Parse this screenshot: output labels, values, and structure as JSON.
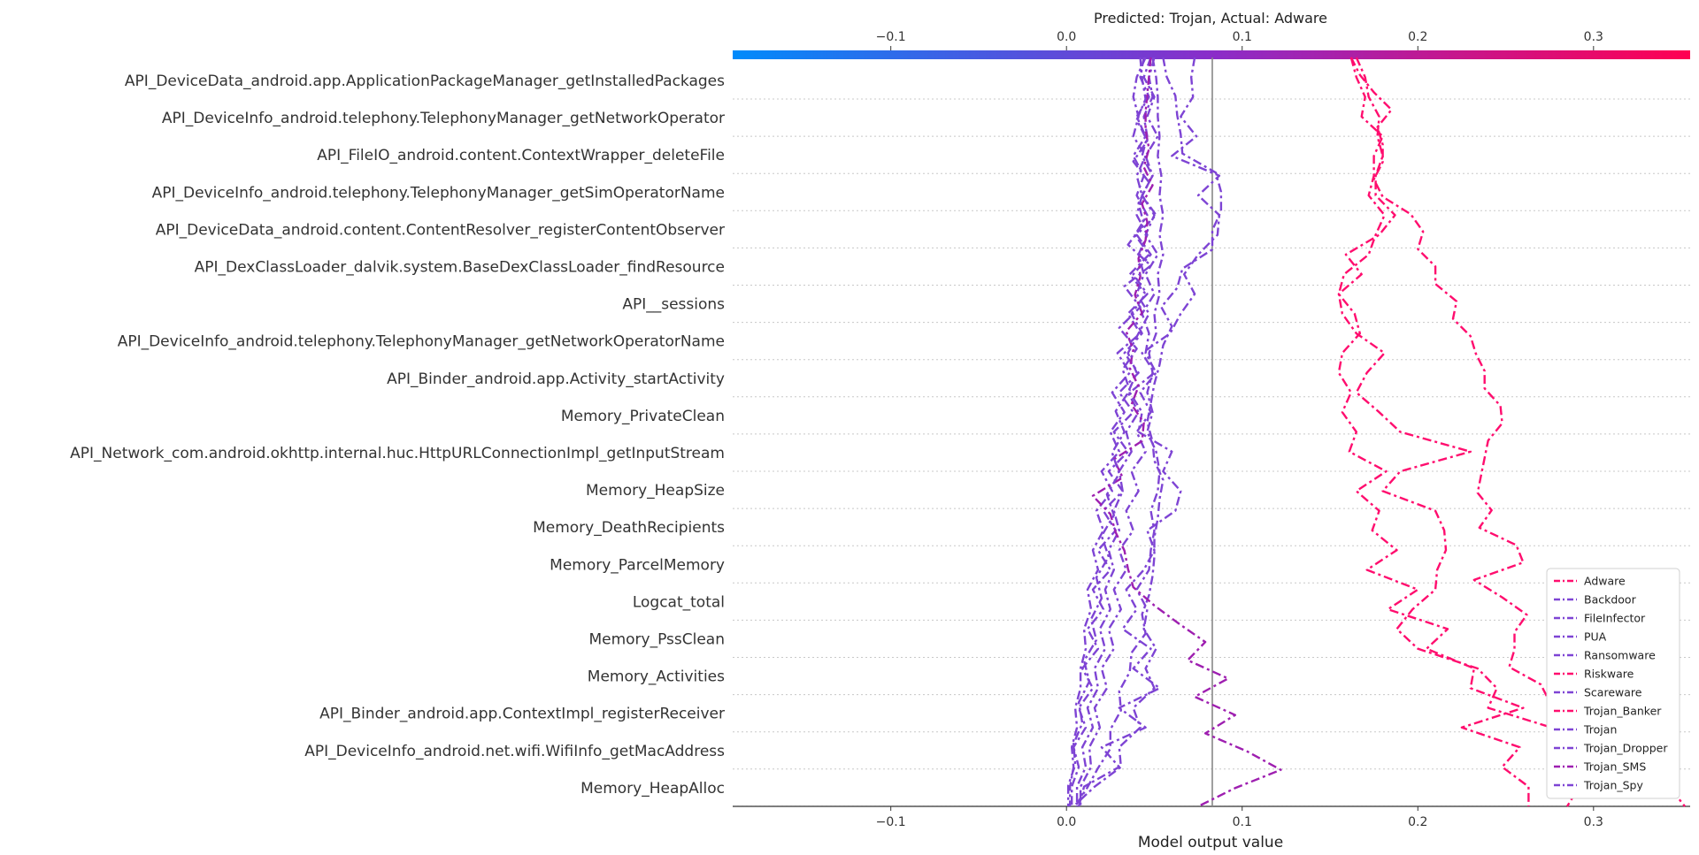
{
  "chart_data": {
    "type": "line",
    "title": "Predicted: Trojan, Actual: Adware",
    "xlabel": "Model output value",
    "ylabel": "",
    "xlim": [
      -0.19,
      0.355
    ],
    "x_ticks": [
      -0.1,
      0.0,
      0.1,
      0.2,
      0.3
    ],
    "x_tick_labels": [
      "−0.1",
      "0.0",
      "0.1",
      "0.2",
      "0.3"
    ],
    "base_value": 0.083,
    "grid": "horizontal dotted rows",
    "legend_position": "bottom-right",
    "colorbar": {
      "from": "#008bfb",
      "to": "#ff0052"
    },
    "features": [
      "API_DeviceData_android.app.ApplicationPackageManager_getInstalledPackages",
      "API_DeviceInfo_android.telephony.TelephonyManager_getNetworkOperator",
      "API_FileIO_android.content.ContextWrapper_deleteFile",
      "API_DeviceInfo_android.telephony.TelephonyManager_getSimOperatorName",
      "API_DeviceData_android.content.ContentResolver_registerContentObserver",
      "API_DexClassLoader_dalvik.system.BaseDexClassLoader_findResource",
      "API__sessions",
      "API_DeviceInfo_android.telephony.TelephonyManager_getNetworkOperatorName",
      "API_Binder_android.app.Activity_startActivity",
      "Memory_PrivateClean",
      "API_Network_com.android.okhttp.internal.huc.HttpURLConnectionImpl_getInputStream",
      "Memory_HeapSize",
      "Memory_DeathRecipients",
      "Memory_ParcelMemory",
      "Logcat_total",
      "Memory_PssClean",
      "Memory_Activities",
      "API_Binder_android.app.ContextImpl_registerReceiver",
      "API_DeviceInfo_android.net.wifi.WifiInfo_getMacAddress",
      "Memory_HeapAlloc"
    ],
    "series": [
      {
        "name": "Adware",
        "color": "#ff0d6e",
        "values": [
          0.165,
          0.17,
          0.172,
          0.178,
          0.177,
          0.18,
          0.176,
          0.176,
          0.187,
          0.178,
          0.159,
          0.168,
          0.155,
          0.157,
          0.165,
          0.181,
          0.171,
          0.165,
          0.178,
          0.19,
          0.23,
          0.19,
          0.18,
          0.21,
          0.215,
          0.216,
          0.211,
          0.21,
          0.197,
          0.188,
          0.2,
          0.234,
          0.245,
          0.24,
          0.276,
          0.295,
          0.29,
          0.292,
          0.285
        ]
      },
      {
        "name": "Backdoor",
        "color": "#7e44d4",
        "values": [
          0.045,
          0.04,
          0.038,
          0.041,
          0.038,
          0.045,
          0.04,
          0.043,
          0.04,
          0.046,
          0.041,
          0.044,
          0.04,
          0.047,
          0.041,
          0.035,
          0.04,
          0.035,
          0.041,
          0.034,
          0.037,
          0.03,
          0.032,
          0.027,
          0.03,
          0.024,
          0.027,
          0.022,
          0.025,
          0.019,
          0.022,
          0.016,
          0.018,
          0.012,
          0.015,
          0.009,
          0.011,
          0.006,
          0.006
        ]
      },
      {
        "name": "FileInfector",
        "color": "#7e44d4",
        "values": [
          0.05,
          0.047,
          0.049,
          0.044,
          0.046,
          0.043,
          0.049,
          0.043,
          0.05,
          0.045,
          0.052,
          0.045,
          0.05,
          0.043,
          0.047,
          0.045,
          0.051,
          0.042,
          0.048,
          0.04,
          0.045,
          0.037,
          0.041,
          0.034,
          0.038,
          0.03,
          0.034,
          0.027,
          0.031,
          0.024,
          0.027,
          0.02,
          0.023,
          0.016,
          0.019,
          0.013,
          0.014,
          0.008,
          0.008
        ]
      },
      {
        "name": "PUA",
        "color": "#7e44d4",
        "values": [
          0.044,
          0.042,
          0.047,
          0.04,
          0.045,
          0.038,
          0.044,
          0.04,
          0.046,
          0.039,
          0.047,
          0.036,
          0.045,
          0.037,
          0.043,
          0.033,
          0.041,
          0.03,
          0.038,
          0.027,
          0.035,
          0.024,
          0.032,
          0.021,
          0.028,
          0.018,
          0.025,
          0.015,
          0.021,
          0.012,
          0.018,
          0.009,
          0.015,
          0.007,
          0.011,
          0.004,
          0.007,
          0.003,
          0.003
        ]
      },
      {
        "name": "Ransomware",
        "color": "#7e44d4",
        "values": [
          0.048,
          0.044,
          0.05,
          0.046,
          0.052,
          0.045,
          0.049,
          0.043,
          0.051,
          0.04,
          0.048,
          0.038,
          0.046,
          0.035,
          0.042,
          0.029,
          0.036,
          0.026,
          0.033,
          0.025,
          0.03,
          0.02,
          0.026,
          0.017,
          0.021,
          0.015,
          0.018,
          0.012,
          0.014,
          0.01,
          0.011,
          0.008,
          0.008,
          0.005,
          0.006,
          0.003,
          0.004,
          0.002,
          0.002
        ]
      },
      {
        "name": "Riskware",
        "color": "#ff0d6e",
        "values": [
          0.162,
          0.165,
          0.17,
          0.168,
          0.18,
          0.175,
          0.175,
          0.172,
          0.181,
          0.176,
          0.172,
          0.158,
          0.155,
          0.164,
          0.167,
          0.157,
          0.155,
          0.162,
          0.157,
          0.165,
          0.161,
          0.182,
          0.165,
          0.178,
          0.174,
          0.188,
          0.171,
          0.2,
          0.183,
          0.217,
          0.205,
          0.232,
          0.23,
          0.26,
          0.225,
          0.258,
          0.248,
          0.263,
          0.263
        ]
      },
      {
        "name": "Scareware",
        "color": "#7e44d4",
        "values": [
          0.073,
          0.071,
          0.072,
          0.065,
          0.074,
          0.06,
          0.087,
          0.075,
          0.087,
          0.086,
          0.075,
          0.067,
          0.073,
          0.065,
          0.059,
          0.043,
          0.05,
          0.036,
          0.043,
          0.041,
          0.06,
          0.055,
          0.065,
          0.062,
          0.046,
          0.05,
          0.044,
          0.034,
          0.04,
          0.032,
          0.048,
          0.038,
          0.053,
          0.03,
          0.045,
          0.02,
          0.03,
          0.01,
          0.007
        ]
      },
      {
        "name": "Trojan_Banker",
        "color": "#ff0d6e",
        "values": [
          0.162,
          0.167,
          0.175,
          0.185,
          0.177,
          0.18,
          0.18,
          0.175,
          0.18,
          0.196,
          0.203,
          0.2,
          0.21,
          0.21,
          0.222,
          0.22,
          0.23,
          0.233,
          0.238,
          0.238,
          0.247,
          0.248,
          0.24,
          0.238,
          0.236,
          0.234,
          0.242,
          0.235,
          0.256,
          0.26,
          0.232,
          0.248,
          0.262,
          0.255,
          0.255,
          0.252,
          0.27,
          0.275,
          0.29,
          0.3,
          0.31,
          0.33,
          0.344,
          0.352
        ]
      },
      {
        "name": "Trojan",
        "color": "#7e44d4",
        "values": [
          0.049,
          0.051,
          0.052,
          0.052,
          0.053,
          0.052,
          0.054,
          0.053,
          0.055,
          0.053,
          0.055,
          0.052,
          0.053,
          0.05,
          0.051,
          0.047,
          0.049,
          0.046,
          0.049,
          0.046,
          0.051,
          0.053,
          0.052,
          0.048,
          0.05,
          0.048,
          0.047,
          0.04,
          0.046,
          0.044,
          0.051,
          0.045,
          0.05,
          0.038,
          0.042,
          0.03,
          0.031,
          0.016,
          0.004
        ]
      },
      {
        "name": "Trojan_Dropper",
        "color": "#7e44d4",
        "values": [
          0.055,
          0.057,
          0.062,
          0.063,
          0.065,
          0.066,
          0.085,
          0.088,
          0.088,
          0.083,
          0.083,
          0.066,
          0.063,
          0.054,
          0.06,
          0.055,
          0.053,
          0.05,
          0.048,
          0.046,
          0.049,
          0.05,
          0.055,
          0.053,
          0.052,
          0.05,
          0.05,
          0.049,
          0.047,
          0.043,
          0.045,
          0.037,
          0.036,
          0.03,
          0.031,
          0.025,
          0.025,
          0.018,
          0.012,
          0.005
        ]
      },
      {
        "name": "Trojan_SMS",
        "color": "#9e1fb0",
        "values": [
          0.048,
          0.047,
          0.046,
          0.045,
          0.045,
          0.047,
          0.044,
          0.049,
          0.043,
          0.046,
          0.045,
          0.041,
          0.042,
          0.039,
          0.043,
          0.034,
          0.038,
          0.036,
          0.041,
          0.037,
          0.044,
          0.043,
          0.027,
          0.032,
          0.015,
          0.025,
          0.028,
          0.033,
          0.035,
          0.038,
          0.05,
          0.064,
          0.079,
          0.069,
          0.092,
          0.073,
          0.096,
          0.079,
          0.103,
          0.122,
          0.096,
          0.075
        ]
      },
      {
        "name": "Trojan_Spy",
        "color": "#7e44d4",
        "values": [
          0.042,
          0.043,
          0.045,
          0.04,
          0.046,
          0.038,
          0.047,
          0.041,
          0.044,
          0.035,
          0.048,
          0.033,
          0.042,
          0.03,
          0.04,
          0.032,
          0.036,
          0.028,
          0.033,
          0.026,
          0.03,
          0.023,
          0.027,
          0.02,
          0.024,
          0.017,
          0.02,
          0.014,
          0.017,
          0.01,
          0.013,
          0.007,
          0.009,
          0.004,
          0.005,
          0.001,
          0.001
        ]
      }
    ]
  }
}
